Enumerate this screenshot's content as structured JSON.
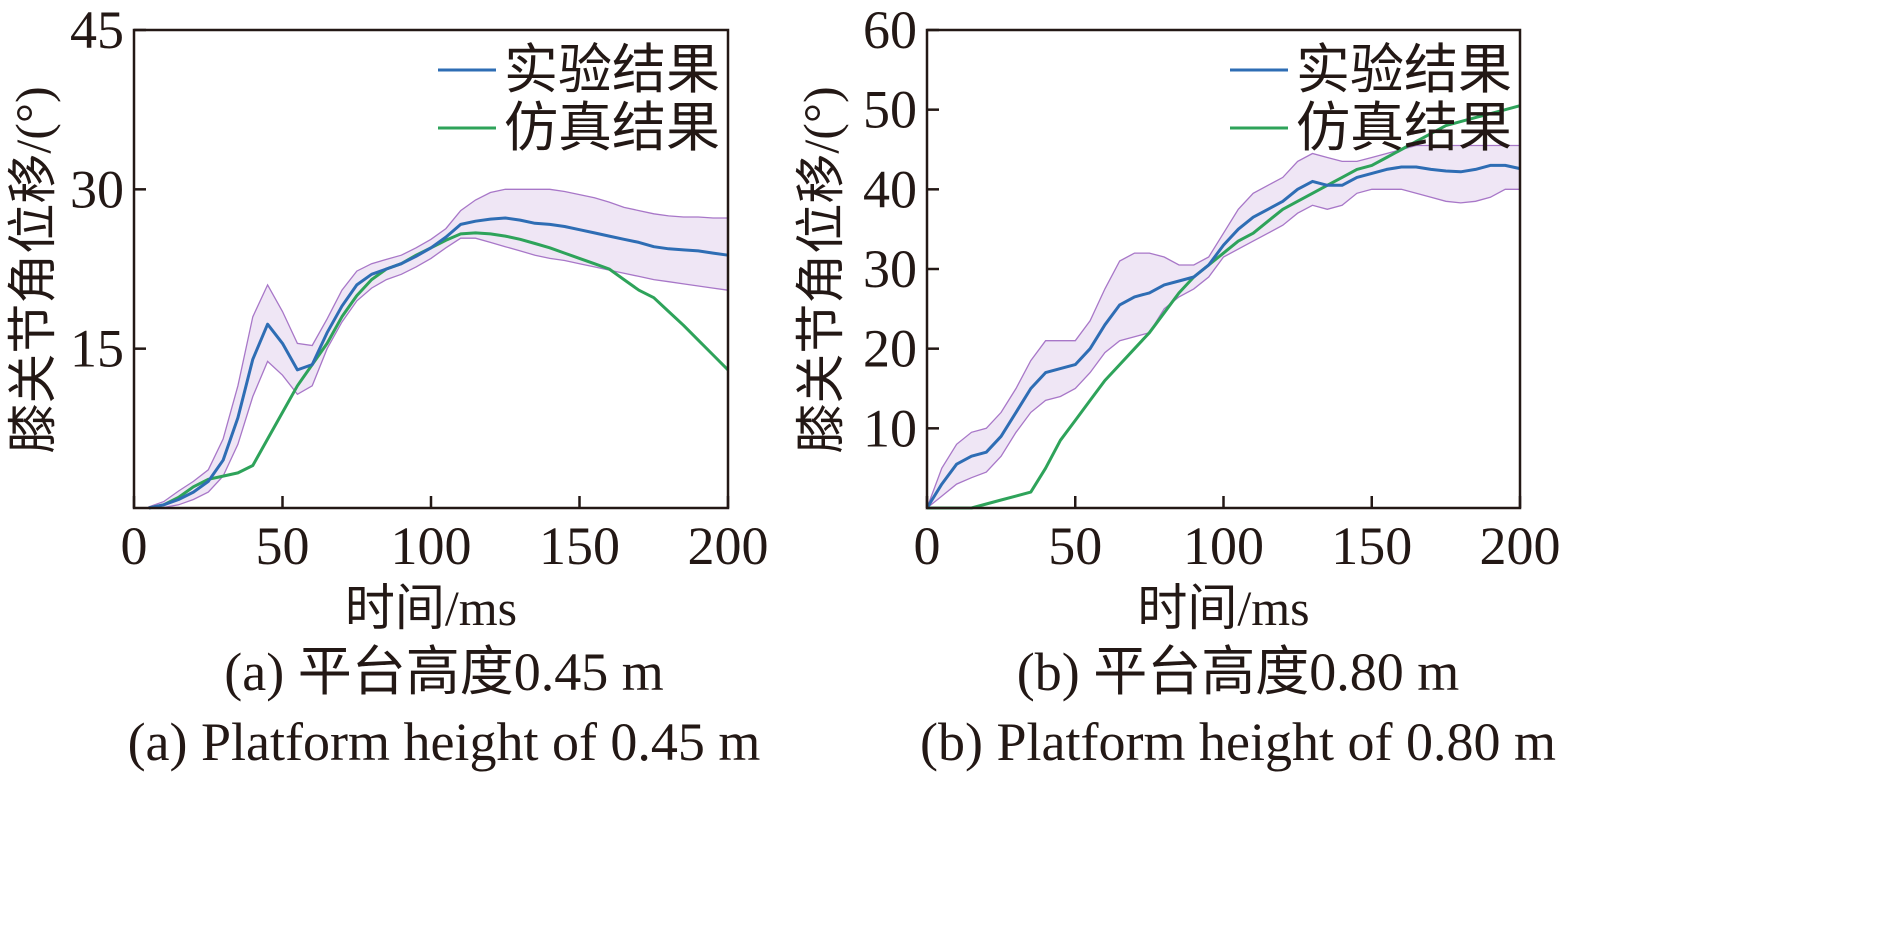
{
  "chart_data": [
    {
      "type": "line",
      "subplot": "a",
      "caption_cn": "(a) 平台高度0.45 m",
      "caption_en": "(a) Platform height of 0.45 m",
      "xlabel": "时间/ms",
      "ylabel": "膝关节角位移/(°)",
      "xlim": [
        0,
        200
      ],
      "ylim": [
        0,
        45
      ],
      "xticks": [
        "0",
        "50",
        "100",
        "150",
        "200"
      ],
      "yticks": [
        "15",
        "30",
        "45"
      ],
      "ytick_values": [
        15,
        30,
        45
      ],
      "grid": false,
      "legend_position": "top-right",
      "colors": {
        "experiment": "#2e6db4",
        "simulation": "#2ea35a",
        "band": "#a877c8"
      },
      "series": [
        {
          "name": "实验结果",
          "x": [
            5,
            10,
            15,
            20,
            25,
            30,
            35,
            40,
            45,
            50,
            55,
            60,
            65,
            70,
            75,
            80,
            85,
            90,
            95,
            100,
            105,
            110,
            115,
            120,
            125,
            130,
            135,
            140,
            145,
            150,
            155,
            160,
            165,
            170,
            175,
            180,
            185,
            190,
            195,
            200
          ],
          "y": [
            0,
            0.3,
            0.8,
            1.5,
            2.5,
            4.5,
            8.5,
            14,
            17.3,
            15.5,
            13,
            13.5,
            16.5,
            19,
            21,
            22,
            22.5,
            23,
            23.7,
            24.5,
            25.5,
            26.7,
            27,
            27.2,
            27.3,
            27.1,
            26.8,
            26.7,
            26.5,
            26.2,
            25.9,
            25.6,
            25.3,
            25,
            24.6,
            24.4,
            24.3,
            24.2,
            24,
            23.8
          ],
          "upper": [
            0.1,
            0.6,
            1.6,
            2.5,
            3.6,
            6.5,
            11.5,
            18,
            21,
            18.5,
            15.5,
            15.3,
            17.8,
            20.5,
            22.3,
            23,
            23.4,
            23.8,
            24.5,
            25.3,
            26.3,
            28,
            29,
            29.7,
            30,
            30,
            30,
            30,
            29.8,
            29.5,
            29.2,
            28.8,
            28.3,
            28,
            27.7,
            27.5,
            27.4,
            27.4,
            27.3,
            27.3
          ],
          "lower": [
            0,
            0.05,
            0.3,
            0.8,
            1.5,
            3,
            6,
            10.5,
            13.8,
            12.5,
            10.7,
            11.5,
            15,
            17.5,
            19.5,
            20.7,
            21.5,
            22,
            22.7,
            23.5,
            24.5,
            25.4,
            25.4,
            25,
            24.6,
            24.2,
            23.8,
            23.5,
            23.3,
            23,
            22.7,
            22.4,
            22.1,
            21.8,
            21.5,
            21.3,
            21.1,
            20.9,
            20.7,
            20.5
          ]
        },
        {
          "name": "仿真结果",
          "x": [
            5,
            10,
            15,
            20,
            25,
            30,
            35,
            40,
            45,
            50,
            55,
            60,
            65,
            70,
            75,
            80,
            85,
            90,
            95,
            100,
            105,
            110,
            115,
            120,
            125,
            130,
            135,
            140,
            145,
            150,
            155,
            160,
            165,
            170,
            175,
            180,
            185,
            190,
            195,
            200
          ],
          "y": [
            0,
            0.3,
            1,
            2,
            2.7,
            3,
            3.3,
            4,
            6.5,
            9,
            11.5,
            13.5,
            15.5,
            18,
            20,
            21.5,
            22.5,
            23,
            23.8,
            24.5,
            25.2,
            25.8,
            25.9,
            25.8,
            25.6,
            25.3,
            24.9,
            24.5,
            24,
            23.5,
            23,
            22.5,
            21.5,
            20.5,
            19.8,
            18.5,
            17.2,
            15.8,
            14.4,
            13
          ]
        }
      ]
    },
    {
      "type": "line",
      "subplot": "b",
      "caption_cn": "(b) 平台高度0.80 m",
      "caption_en": "(b) Platform height of 0.80 m",
      "xlabel": "时间/ms",
      "ylabel": "膝关节角位移/(°)",
      "xlim": [
        0,
        200
      ],
      "ylim": [
        0,
        60
      ],
      "xticks": [
        "0",
        "50",
        "100",
        "150",
        "200"
      ],
      "yticks": [
        "10",
        "20",
        "30",
        "40",
        "50",
        "60"
      ],
      "ytick_values": [
        10,
        20,
        30,
        40,
        50,
        60
      ],
      "grid": false,
      "legend_position": "top-right",
      "colors": {
        "experiment": "#2e6db4",
        "simulation": "#2ea35a",
        "band": "#a877c8"
      },
      "series": [
        {
          "name": "实验结果",
          "x": [
            0,
            5,
            10,
            15,
            20,
            25,
            30,
            35,
            40,
            45,
            50,
            55,
            60,
            65,
            70,
            75,
            80,
            85,
            90,
            95,
            100,
            105,
            110,
            115,
            120,
            125,
            130,
            135,
            140,
            145,
            150,
            155,
            160,
            165,
            170,
            175,
            180,
            185,
            190,
            195,
            200
          ],
          "y": [
            0,
            3,
            5.5,
            6.5,
            7,
            9,
            12,
            15,
            17,
            17.5,
            18,
            20,
            23,
            25.5,
            26.5,
            27,
            28,
            28.5,
            29,
            30.5,
            33,
            35,
            36.5,
            37.5,
            38.5,
            40,
            41,
            40.5,
            40.5,
            41.5,
            42,
            42.5,
            42.8,
            42.8,
            42.5,
            42.3,
            42.2,
            42.5,
            43,
            43,
            42.6
          ],
          "upper": [
            0,
            5,
            8,
            9.5,
            10,
            12,
            15,
            18.5,
            21,
            21,
            21,
            23.5,
            27.5,
            31,
            32,
            32,
            31.5,
            30.5,
            30.5,
            31.5,
            34.5,
            37.5,
            39.5,
            40.5,
            41.5,
            43.5,
            44.5,
            44,
            43.5,
            43.5,
            44,
            44.5,
            45,
            45.5,
            45.5,
            45.5,
            45.5,
            45.5,
            45.5,
            45.5,
            45.5
          ],
          "lower": [
            0,
            1.5,
            3,
            3.8,
            4.5,
            6.5,
            9.5,
            12,
            13.5,
            14,
            15,
            17,
            19.5,
            21,
            21.5,
            22,
            25,
            26.5,
            27.5,
            29,
            31.5,
            32.5,
            33.5,
            34.5,
            35.5,
            37,
            38,
            37.5,
            38,
            39.5,
            40,
            40,
            40,
            39.5,
            39,
            38.5,
            38.3,
            38.5,
            39,
            40,
            40
          ]
        },
        {
          "name": "仿真结果",
          "x": [
            0,
            5,
            10,
            15,
            20,
            25,
            30,
            35,
            40,
            45,
            50,
            55,
            60,
            65,
            70,
            75,
            80,
            85,
            90,
            95,
            100,
            105,
            110,
            115,
            120,
            125,
            130,
            135,
            140,
            145,
            150,
            155,
            160,
            165,
            170,
            175,
            180,
            185,
            190,
            195,
            200
          ],
          "y": [
            0,
            0,
            0,
            0,
            0.5,
            1,
            1.5,
            2,
            5,
            8.5,
            11,
            13.5,
            16,
            18,
            20,
            22,
            24.5,
            27,
            29,
            30.5,
            32,
            33.5,
            34.5,
            36,
            37.5,
            38.5,
            39.5,
            40.5,
            41.5,
            42.5,
            43,
            44,
            45,
            46,
            47,
            48,
            48.5,
            49,
            49.5,
            50,
            50.5
          ]
        }
      ]
    }
  ]
}
